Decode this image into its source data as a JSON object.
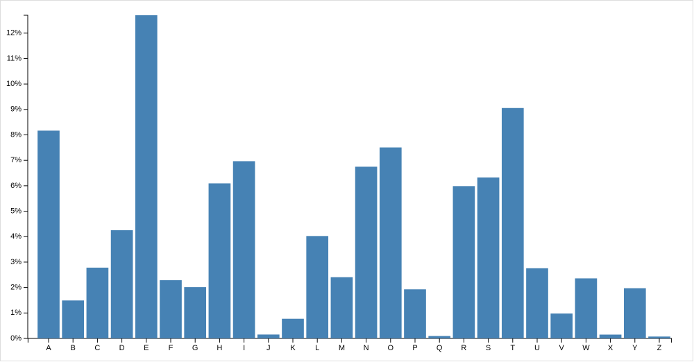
{
  "chart_data": {
    "type": "bar",
    "categories": [
      "A",
      "B",
      "C",
      "D",
      "E",
      "F",
      "G",
      "H",
      "I",
      "J",
      "K",
      "L",
      "M",
      "N",
      "O",
      "P",
      "Q",
      "R",
      "S",
      "T",
      "U",
      "V",
      "W",
      "X",
      "Y",
      "Z"
    ],
    "values": [
      8.167,
      1.492,
      2.782,
      4.253,
      12.702,
      2.288,
      2.015,
      6.094,
      6.966,
      0.153,
      0.772,
      4.025,
      2.406,
      6.749,
      7.507,
      1.929,
      0.095,
      5.987,
      6.327,
      9.056,
      2.758,
      0.978,
      2.36,
      0.15,
      1.974,
      0.074
    ],
    "color": "#4682b4",
    "ylim": [
      0,
      12.702
    ],
    "yticks": [
      {
        "value": 0,
        "label": "0%"
      },
      {
        "value": 1,
        "label": "1%"
      },
      {
        "value": 2,
        "label": "2%"
      },
      {
        "value": 3,
        "label": "3%"
      },
      {
        "value": 4,
        "label": "4%"
      },
      {
        "value": 5,
        "label": "5%"
      },
      {
        "value": 6,
        "label": "6%"
      },
      {
        "value": 7,
        "label": "7%"
      },
      {
        "value": 8,
        "label": "8%"
      },
      {
        "value": 9,
        "label": "9%"
      },
      {
        "value": 10,
        "label": "10%"
      },
      {
        "value": 11,
        "label": "11%"
      },
      {
        "value": 12,
        "label": "12%"
      }
    ],
    "grid": false
  }
}
